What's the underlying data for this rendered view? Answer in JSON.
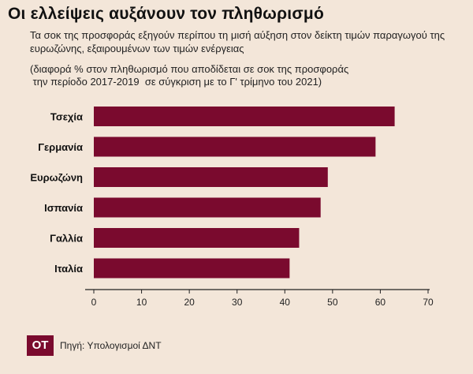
{
  "header": {
    "title": "Οι ελλείψεις αυξάνουν τον πληθωρισμό",
    "subtitle": "Τα σοκ της προσφοράς εξηγούν περίπου τη μισή αύξηση στον δείκτη τιμών παραγωγού της ευρωζώνης, εξαιρουμένων των τιμών ενέργειας",
    "note": "(διαφορά % στον πληθωρισμό που αποδίδεται σε σοκ της προσφοράς\n την περίοδο 2017-2019  σε σύγκριση με το Γ' τρίμηνο του 2021)"
  },
  "chart_data": {
    "type": "bar",
    "orientation": "horizontal",
    "categories": [
      "Τσεχία",
      "Γερμανία",
      "Ευρωζώνη",
      "Ισπανία",
      "Γαλλία",
      "Ιταλία"
    ],
    "values": [
      63,
      59,
      49,
      47.5,
      43,
      41
    ],
    "xlim": [
      0,
      70
    ],
    "xticks": [
      0,
      10,
      20,
      30,
      40,
      50,
      60,
      70
    ],
    "bar_color": "#7a0a2e"
  },
  "footer": {
    "logo": "OT",
    "source": "Πηγή: Υπολογισμοί ΔΝΤ"
  }
}
